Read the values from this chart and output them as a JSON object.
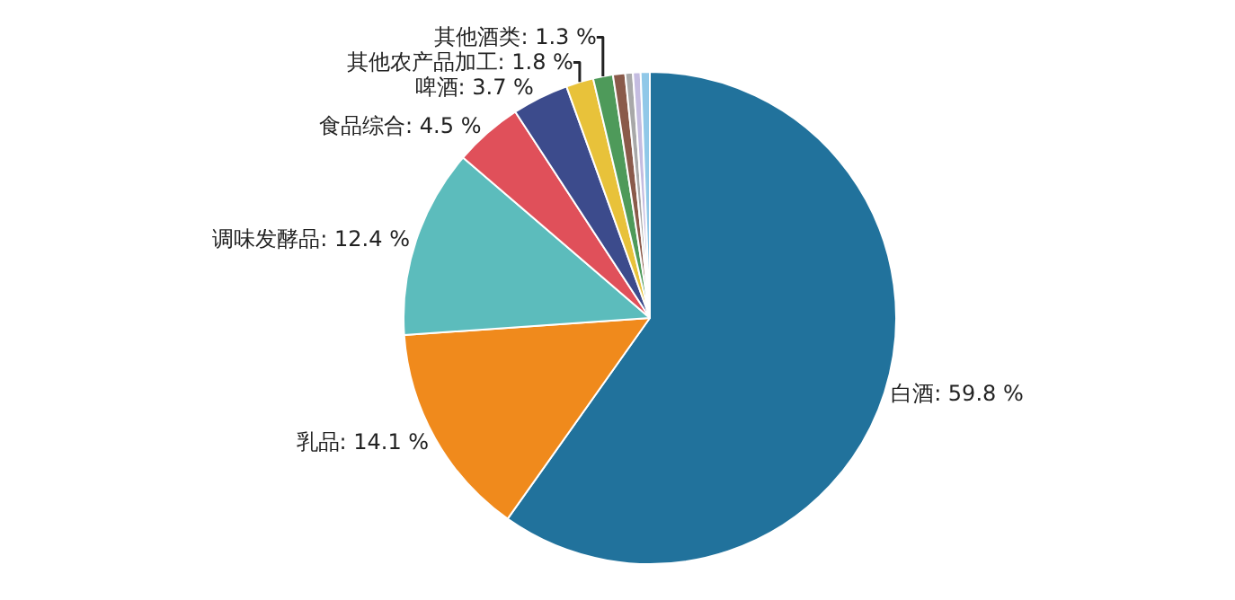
{
  "chart_data": {
    "type": "pie",
    "categories": [
      "白酒",
      "乳品",
      "调味发酵品",
      "食品综合",
      "啤酒",
      "其他农产品加工",
      "其他酒类",
      null,
      null,
      null,
      null
    ],
    "values": [
      59.8,
      14.1,
      12.4,
      4.5,
      3.7,
      1.8,
      1.3,
      0.8,
      0.5,
      0.5,
      0.6
    ],
    "value_labels": [
      "59.8 %",
      "14.1 %",
      "12.4 %",
      "4.5 %",
      "3.7 %",
      "1.8 %",
      "1.3 %",
      null,
      null,
      null,
      null
    ],
    "colors": [
      "#21729c",
      "#f08a1c",
      "#5cbcbc",
      "#e0505a",
      "#3c4b8c",
      "#e8c23a",
      "#4e9a5a",
      "#8a5a4a",
      "#a8a8a8",
      "#c4bce0",
      "#90c8e8"
    ],
    "legend": false
  }
}
